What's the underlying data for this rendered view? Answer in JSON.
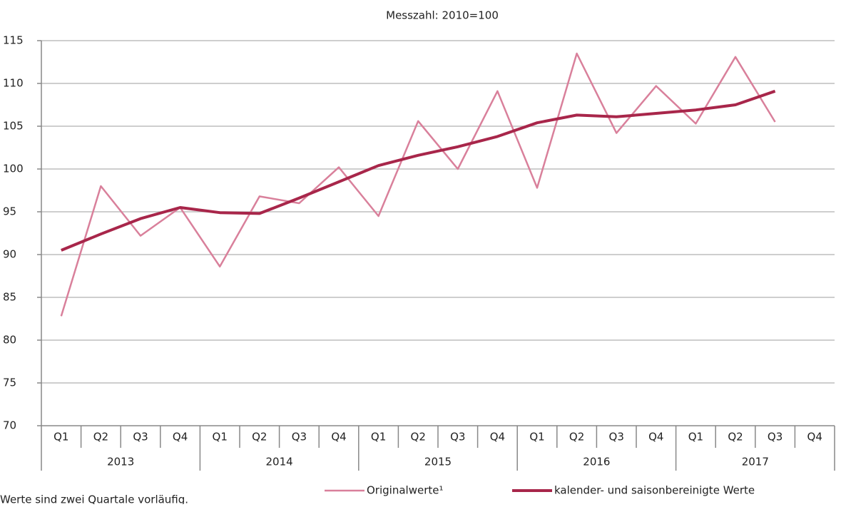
{
  "chart_data": {
    "type": "line",
    "title": "Messzahl: 2010=100",
    "categories": [
      "Q1",
      "Q2",
      "Q3",
      "Q4",
      "Q1",
      "Q2",
      "Q3",
      "Q4",
      "Q1",
      "Q2",
      "Q3",
      "Q4",
      "Q1",
      "Q2",
      "Q3",
      "Q4",
      "Q1",
      "Q2",
      "Q3",
      "Q4"
    ],
    "years": [
      "2013",
      "2014",
      "2015",
      "2016",
      "2017"
    ],
    "series": [
      {
        "name": "Originalwerte¹",
        "color": "#d9809b",
        "width": 2.5,
        "values": [
          82.8,
          98.0,
          92.2,
          95.5,
          88.6,
          96.8,
          96.0,
          100.2,
          94.5,
          105.6,
          100.0,
          109.1,
          97.8,
          113.5,
          104.2,
          109.7,
          105.3,
          113.1,
          105.5,
          null
        ]
      },
      {
        "name": "kalender- und saisonbereinigte Werte",
        "color": "#a8264a",
        "width": 4,
        "values": [
          90.5,
          92.4,
          94.2,
          95.5,
          94.9,
          94.8,
          96.6,
          98.5,
          100.4,
          101.6,
          102.6,
          103.8,
          105.4,
          106.3,
          106.1,
          106.5,
          106.9,
          107.5,
          109.1,
          null
        ]
      }
    ],
    "ylim": [
      70,
      115
    ],
    "yticks": [
      70,
      75,
      80,
      85,
      90,
      95,
      100,
      105,
      110,
      115
    ],
    "grid": true,
    "footnote": "Werte sind zwei Quartale vorläufig."
  }
}
